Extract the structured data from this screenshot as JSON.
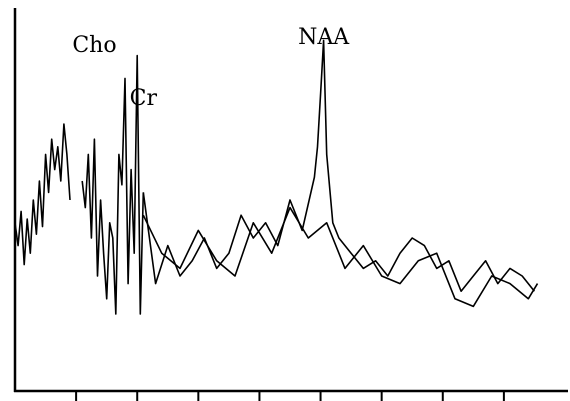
{
  "chart_data": {
    "type": "line",
    "title": "",
    "xlabel": "",
    "ylabel": "",
    "grid": false,
    "xlim": [
      0,
      9
    ],
    "ylim": [
      0,
      100
    ],
    "xticks": [
      1,
      2,
      3,
      4,
      5,
      6,
      7,
      8
    ],
    "annotations": [
      {
        "text": "Cho",
        "x": 1.3,
        "y": 89
      },
      {
        "text": "Cr",
        "x": 2.1,
        "y": 75
      },
      {
        "text": "NAA",
        "x": 5.05,
        "y": 91
      }
    ],
    "series": [
      {
        "segments": [
          {
            "x": [
              0,
              0.05,
              0.1,
              0.15,
              0.2,
              0.25,
              0.3,
              0.35,
              0.4,
              0.45,
              0.5,
              0.55,
              0.6,
              0.65,
              0.7,
              0.75,
              0.8,
              0.85,
              0.9
            ],
            "y": [
              44,
              38,
              47,
              33,
              45,
              36,
              50,
              41,
              55,
              43,
              62,
              52,
              66,
              58,
              64,
              55,
              70,
              62,
              50
            ]
          },
          {
            "x": [
              1.1,
              1.15,
              1.2,
              1.25,
              1.3,
              1.35,
              1.4,
              1.45,
              1.5,
              1.55,
              1.6,
              1.65,
              1.7,
              1.75,
              1.8,
              1.85,
              1.9,
              1.95,
              2.0,
              2.05,
              2.1
            ],
            "y": [
              55,
              48,
              62,
              40,
              66,
              30,
              50,
              36,
              24,
              44,
              40,
              20,
              62,
              54,
              82,
              28,
              58,
              36,
              88,
              20,
              52
            ]
          },
          {
            "x": [
              2.1,
              2.3,
              2.5,
              2.7,
              2.9,
              3.1,
              3.3,
              3.5,
              3.7,
              3.9,
              4.1,
              4.3,
              4.5,
              4.7,
              4.9,
              4.95,
              5.0,
              5.05,
              5.1,
              5.2,
              5.3,
              5.5,
              5.7,
              5.9,
              6.1,
              6.3,
              6.5,
              6.7,
              6.9,
              7.1,
              7.3,
              7.5,
              7.7,
              7.9,
              8.1,
              8.3,
              8.5
            ],
            "y": [
              52,
              28,
              38,
              30,
              34,
              40,
              32,
              36,
              46,
              40,
              44,
              38,
              50,
              42,
              56,
              64,
              78,
              92,
              62,
              44,
              40,
              36,
              32,
              34,
              30,
              36,
              40,
              38,
              32,
              34,
              26,
              30,
              34,
              28,
              32,
              30,
              26
            ]
          }
        ]
      },
      {
        "segments": [
          {
            "x": [
              2.1,
              2.4,
              2.7,
              3.0,
              3.3,
              3.6,
              3.9,
              4.2,
              4.5,
              4.8,
              5.1,
              5.4,
              5.7,
              6.0,
              6.3,
              6.6,
              6.9,
              7.2,
              7.5,
              7.8,
              8.1,
              8.4,
              8.55
            ],
            "y": [
              46,
              36,
              32,
              42,
              34,
              30,
              44,
              36,
              48,
              40,
              44,
              32,
              38,
              30,
              28,
              34,
              36,
              24,
              22,
              30,
              28,
              24,
              28
            ]
          }
        ]
      }
    ]
  }
}
